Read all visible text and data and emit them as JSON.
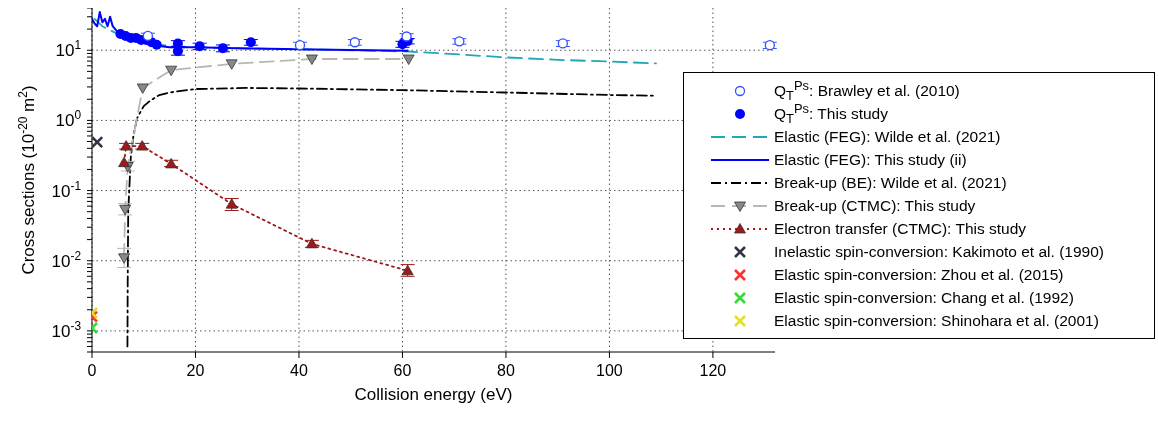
{
  "chart_data": {
    "type": "line",
    "xlabel": "Collision energy (eV)",
    "ylabel": "Cross sections (10$^{-20}$ m$^{2}$)",
    "xlim": [
      0,
      132
    ],
    "xticks": [
      0,
      20,
      40,
      60,
      80,
      100,
      120
    ],
    "ylim": [
      0.0005,
      40
    ],
    "log": true,
    "grid": true,
    "legend": "right",
    "yticks": [
      {
        "value": 0.0005,
        "label": null
      },
      {
        "value": 0.0006,
        "label": null
      },
      {
        "value": 0.0007,
        "label": null
      },
      {
        "value": 0.0008,
        "label": null
      },
      {
        "value": 0.0009,
        "label": null
      },
      {
        "value": 0.001,
        "label": "10$^{-3}$"
      },
      {
        "value": 0.002,
        "label": null
      },
      {
        "value": 0.003,
        "label": null
      },
      {
        "value": 0.004,
        "label": null
      },
      {
        "value": 0.005,
        "label": null
      },
      {
        "value": 0.006,
        "label": null
      },
      {
        "value": 0.007,
        "label": null
      },
      {
        "value": 0.008,
        "label": null
      },
      {
        "value": 0.009,
        "label": null
      },
      {
        "value": 0.01,
        "label": "10$^{-2}$"
      },
      {
        "value": 0.02,
        "label": null
      },
      {
        "value": 0.03,
        "label": null
      },
      {
        "value": 0.04,
        "label": null
      },
      {
        "value": 0.05,
        "label": null
      },
      {
        "value": 0.06,
        "label": null
      },
      {
        "value": 0.07,
        "label": null
      },
      {
        "value": 0.08,
        "label": null
      },
      {
        "value": 0.09,
        "label": null
      },
      {
        "value": 0.1,
        "label": "10$^{-1}$"
      },
      {
        "value": 0.2,
        "label": null
      },
      {
        "value": 0.3,
        "label": null
      },
      {
        "value": 0.4,
        "label": null
      },
      {
        "value": 0.5,
        "label": null
      },
      {
        "value": 0.6,
        "label": null
      },
      {
        "value": 0.7,
        "label": null
      },
      {
        "value": 0.8,
        "label": null
      },
      {
        "value": 0.9,
        "label": null
      },
      {
        "value": 1,
        "label": "10$^{0}$"
      },
      {
        "value": 2,
        "label": null
      },
      {
        "value": 3,
        "label": null
      },
      {
        "value": 4,
        "label": null
      },
      {
        "value": 5,
        "label": null
      },
      {
        "value": 6,
        "label": null
      },
      {
        "value": 7,
        "label": null
      },
      {
        "value": 8,
        "label": null
      },
      {
        "value": 9,
        "label": null
      },
      {
        "value": 10,
        "label": "10$^{1}$"
      },
      {
        "value": 20,
        "label": null
      },
      {
        "value": 30,
        "label": null
      },
      {
        "value": 40,
        "label": null
      }
    ],
    "series": [
      {
        "name": "Q$_{T}$$^{Ps}$: Brawley et al. (2010)",
        "type": "scatter",
        "marker": "open circle",
        "color": "#3050ff",
        "x": [
          10.8,
          40.2,
          50.8,
          60.8,
          71,
          91,
          131
        ],
        "values": [
          16,
          11.8,
          13,
          15.7,
          13.4,
          12.5,
          11.8
        ],
        "errors": [
          1.5,
          1.2,
          1.2,
          1.5,
          1.2,
          1.2,
          1.2
        ]
      },
      {
        "name": "Q$_{T}$$^{Ps}$: This study",
        "type": "scatter",
        "marker": "circle",
        "color": "#0000ff",
        "x": [
          5.5,
          6.5,
          7.5,
          8.5,
          9.5,
          10.5,
          11.5,
          12.5,
          16.6,
          16.6,
          20.8,
          25.3,
          30.7,
          60,
          61
        ],
        "values": [
          17,
          16,
          15,
          15,
          14,
          14,
          13,
          12,
          12.5,
          9.7,
          11.4,
          10.7,
          13,
          12.2,
          13.5
        ],
        "errors": [
          null,
          null,
          null,
          null,
          null,
          null,
          null,
          null,
          1.2,
          1.2,
          1.2,
          1.2,
          1.2,
          1.2,
          1.2
        ]
      },
      {
        "name": "Elastic (FEG): Wilde et al. (2021)",
        "line_style": "dashed",
        "marker": "none",
        "color": "#20a8b8",
        "x": [
          0.5,
          2,
          5,
          10,
          15,
          20,
          30,
          40,
          50,
          61,
          70,
          80,
          90,
          100,
          109
        ],
        "values": [
          28,
          22,
          17,
          13,
          11.5,
          11,
          10.6,
          10.3,
          10,
          9.6,
          8.8,
          7.9,
          7.3,
          6.9,
          6.5
        ]
      },
      {
        "name": "Elastic (FEG): This study (ii)",
        "line_style": "solid",
        "marker": "none",
        "color": "#0000ff",
        "x": [
          0,
          0.5,
          1,
          1.5,
          2,
          2.5,
          3,
          3.5,
          4,
          5,
          6,
          7,
          8,
          9,
          10,
          11,
          12,
          13,
          15,
          20,
          30,
          40,
          50,
          61
        ],
        "values": [
          28,
          24,
          22,
          35,
          25,
          28,
          22,
          30,
          22,
          18,
          17,
          16,
          15,
          14.5,
          15,
          13,
          12.5,
          11.5,
          11,
          11,
          10.6,
          10.3,
          10.1,
          9.8
        ]
      },
      {
        "name": "Break-up (BE): Wilde et al. (2021)",
        "line_style": "dashdot",
        "marker": "none",
        "color": "#000000",
        "x": [
          6.85,
          6.9,
          7,
          7.5,
          8,
          8.7,
          10,
          11.2,
          13,
          15,
          20,
          30,
          40,
          60,
          80,
          100,
          109
        ],
        "values": [
          0.0006,
          0.005,
          0.05,
          0.3,
          0.6,
          1.07,
          1.6,
          1.9,
          2.3,
          2.5,
          2.8,
          2.9,
          2.85,
          2.7,
          2.5,
          2.3,
          2.25
        ]
      },
      {
        "name": "Break-up (CTMC): This study",
        "line_style": "dashed",
        "marker": "triangle-down",
        "color": "#b8b8b0",
        "x": [
          6.2,
          6.4,
          6.9,
          9.8,
          15.3,
          27,
          42.5,
          61.2
        ],
        "values": [
          0.011,
          0.054,
          0.22,
          2.9,
          5.2,
          6.4,
          7.5,
          7.5
        ],
        "errors": [
          [
            0.008,
            0.015
          ],
          [
            0.045,
            0.065
          ],
          [
            0.19,
            0.26
          ],
          null,
          null,
          null,
          null,
          null
        ]
      },
      {
        "name": "Electron transfer (CTMC): This study",
        "line_style": "dotted",
        "marker": "triangle",
        "color": "#a01818",
        "x": [
          6.2,
          6.6,
          9.7,
          15.3,
          27,
          42.5,
          61
        ],
        "values": [
          0.25,
          0.43,
          0.43,
          0.24,
          0.064,
          0.0174,
          0.0072
        ],
        "errors": [
          null,
          [
            0.39,
            0.47
          ],
          [
            0.39,
            0.47
          ],
          [
            0.22,
            0.27
          ],
          [
            0.052,
            0.077
          ],
          [
            0.0155,
            0.0195
          ],
          [
            0.006,
            0.0088
          ]
        ]
      },
      {
        "name": "Inelastic spin-conversion: Kakimoto et al. (1990)",
        "type": "scatter",
        "marker": "cross",
        "color": "#333344",
        "x": [
          1
        ],
        "values": [
          0.49
        ]
      },
      {
        "name": "Elastic spin-conversion: Zhou et al. (2015)",
        "type": "scatter",
        "marker": "cross",
        "color": "#ff3030",
        "x": [
          0
        ],
        "values": [
          0.0016
        ]
      },
      {
        "name": "Elastic spin-conversion: Chang et al. (1992)",
        "type": "scatter",
        "marker": "cross",
        "color": "#30dd30",
        "x": [
          0
        ],
        "values": [
          0.0011
        ]
      },
      {
        "name": "Elastic spin-conversion: Shinohara et al. (2001)",
        "type": "scatter",
        "marker": "cross",
        "color": "#e6e020",
        "x": [
          0
        ],
        "values": [
          0.0018
        ]
      }
    ]
  }
}
